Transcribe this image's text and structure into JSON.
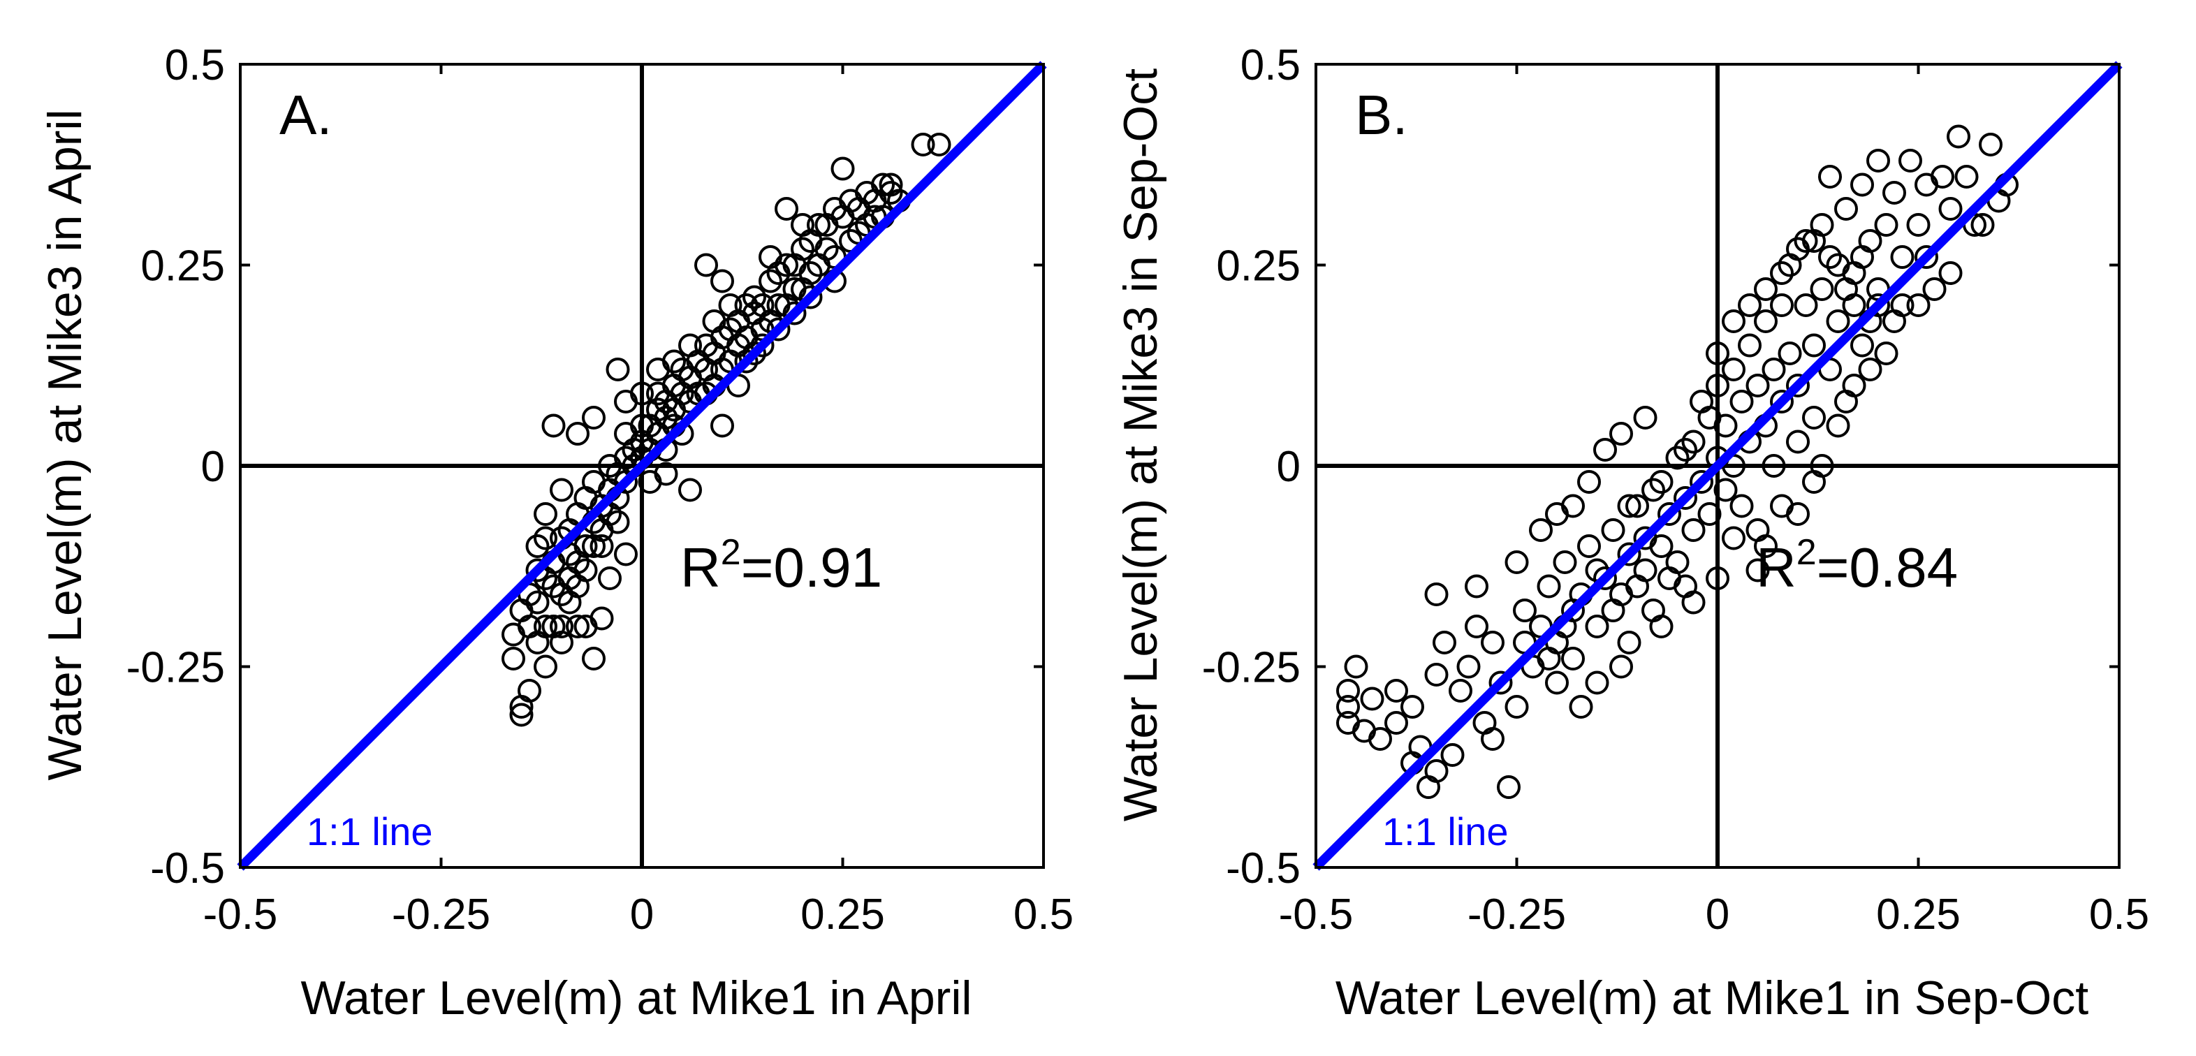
{
  "chart_data": [
    {
      "type": "scatter",
      "panel_label": "A.",
      "xlabel": "Water Level(m) at Mike1 in April",
      "ylabel": "Water Level(m) at Mike3 in April",
      "xlim": [
        -0.5,
        0.5
      ],
      "ylim": [
        -0.5,
        0.5
      ],
      "xticks": [
        -0.5,
        -0.25,
        0,
        0.25,
        0.5
      ],
      "yticks": [
        -0.5,
        -0.25,
        0,
        0.25,
        0.5
      ],
      "xtick_labels": [
        "-0.5",
        "-0.25",
        "0",
        "0.25",
        "0.5"
      ],
      "ytick_labels": [
        "-0.5",
        "-0.25",
        "0",
        "0.25",
        "0.5"
      ],
      "r2_prefix": "R",
      "r2_sup": "2",
      "r2_value": "=0.91",
      "one_to_one_label": "1:1 line",
      "one_to_one_color": "#0000ff",
      "marker_color": "#000000",
      "points": [
        [
          -0.15,
          -0.3
        ],
        [
          -0.15,
          -0.31
        ],
        [
          -0.14,
          -0.28
        ],
        [
          -0.16,
          -0.24
        ],
        [
          -0.13,
          -0.22
        ],
        [
          -0.12,
          -0.25
        ],
        [
          -0.12,
          -0.2
        ],
        [
          -0.11,
          -0.2
        ],
        [
          -0.1,
          -0.2
        ],
        [
          -0.1,
          -0.16
        ],
        [
          -0.09,
          -0.17
        ],
        [
          -0.09,
          -0.14
        ],
        [
          -0.08,
          -0.15
        ],
        [
          -0.08,
          -0.12
        ],
        [
          -0.07,
          -0.13
        ],
        [
          -0.07,
          -0.1
        ],
        [
          -0.06,
          -0.1
        ],
        [
          -0.06,
          -0.07
        ],
        [
          -0.05,
          -0.08
        ],
        [
          -0.05,
          -0.05
        ],
        [
          -0.04,
          -0.06
        ],
        [
          -0.04,
          -0.03
        ],
        [
          -0.03,
          -0.04
        ],
        [
          -0.03,
          -0.01
        ],
        [
          -0.02,
          -0.02
        ],
        [
          -0.02,
          0.01
        ],
        [
          -0.01,
          0
        ],
        [
          -0.01,
          0.02
        ],
        [
          0,
          0.01
        ],
        [
          0,
          0.03
        ],
        [
          0.01,
          0.02
        ],
        [
          0.01,
          0.05
        ],
        [
          0.02,
          0.04
        ],
        [
          0.02,
          0.07
        ],
        [
          0.03,
          0.06
        ],
        [
          0.03,
          0.08
        ],
        [
          0.04,
          0.07
        ],
        [
          0.04,
          0.1
        ],
        [
          0.05,
          0.09
        ],
        [
          0.05,
          0.12
        ],
        [
          0.06,
          0.11
        ],
        [
          0.07,
          0.13
        ],
        [
          0.08,
          0.12
        ],
        [
          0.08,
          0.15
        ],
        [
          0.09,
          0.14
        ],
        [
          0.1,
          0.16
        ],
        [
          0.11,
          0.17
        ],
        [
          0.12,
          0.18
        ],
        [
          0.13,
          0.2
        ],
        [
          0.14,
          0.21
        ],
        [
          0.15,
          0.2
        ],
        [
          0.16,
          0.23
        ],
        [
          0.17,
          0.24
        ],
        [
          0.18,
          0.25
        ],
        [
          0.19,
          0.25
        ],
        [
          0.2,
          0.27
        ],
        [
          0.21,
          0.28
        ],
        [
          0.22,
          0.3
        ],
        [
          0.23,
          0.3
        ],
        [
          0.24,
          0.32
        ],
        [
          0.25,
          0.31
        ],
        [
          0.26,
          0.33
        ],
        [
          0.27,
          0.32
        ],
        [
          0.28,
          0.34
        ],
        [
          0.29,
          0.33
        ],
        [
          0.3,
          0.35
        ],
        [
          0.31,
          0.35
        ],
        [
          0.35,
          0.4
        ],
        [
          0.37,
          0.4
        ],
        [
          0.25,
          0.37
        ],
        [
          0.2,
          0.3
        ],
        [
          0.18,
          0.32
        ],
        [
          0.16,
          0.26
        ],
        [
          0.08,
          0.25
        ],
        [
          0.1,
          0.23
        ],
        [
          -0.11,
          0.05
        ],
        [
          -0.08,
          0.04
        ],
        [
          -0.03,
          0.12
        ],
        [
          -0.06,
          0.06
        ],
        [
          -0.02,
          0.08
        ],
        [
          0.06,
          -0.03
        ],
        [
          0.03,
          -0.01
        ],
        [
          0.1,
          0.05
        ],
        [
          0.12,
          0.1
        ],
        [
          0.15,
          0.15
        ],
        [
          -0.04,
          -0.14
        ],
        [
          -0.07,
          -0.2
        ],
        [
          -0.06,
          -0.24
        ],
        [
          -0.05,
          -0.19
        ],
        [
          -0.02,
          -0.11
        ],
        [
          -0.13,
          -0.1
        ],
        [
          -0.12,
          -0.06
        ],
        [
          -0.1,
          -0.03
        ],
        [
          -0.14,
          -0.16
        ],
        [
          -0.11,
          -0.12
        ],
        [
          -0.09,
          -0.08
        ],
        [
          -0.07,
          -0.04
        ],
        [
          0,
          0.09
        ],
        [
          0.02,
          0.12
        ],
        [
          0.04,
          0.13
        ],
        [
          0.06,
          0.15
        ],
        [
          0.09,
          0.18
        ],
        [
          0.11,
          0.2
        ],
        [
          0.13,
          0.16
        ],
        [
          0.14,
          0.19
        ],
        [
          0.17,
          0.2
        ],
        [
          0.19,
          0.22
        ],
        [
          0.22,
          0.25
        ],
        [
          0.24,
          0.26
        ],
        [
          0.26,
          0.28
        ],
        [
          0.28,
          0.3
        ],
        [
          0.3,
          0.31
        ],
        [
          0.32,
          0.33
        ],
        [
          -0.1,
          -0.22
        ],
        [
          -0.08,
          -0.2
        ],
        [
          -0.09,
          -0.11
        ],
        [
          -0.11,
          -0.15
        ],
        [
          -0.12,
          -0.14
        ],
        [
          -0.13,
          -0.17
        ],
        [
          -0.1,
          -0.09
        ],
        [
          -0.05,
          -0.1
        ],
        [
          -0.03,
          -0.07
        ],
        [
          0.01,
          -0.02
        ],
        [
          0.03,
          0.02
        ],
        [
          0.05,
          0.04
        ],
        [
          0.07,
          0.09
        ],
        [
          0.09,
          0.1
        ],
        [
          0.11,
          0.13
        ],
        [
          0.12,
          0.15
        ],
        [
          0.14,
          0.14
        ],
        [
          0.16,
          0.18
        ],
        [
          0.18,
          0.2
        ],
        [
          0.2,
          0.22
        ],
        [
          0.21,
          0.24
        ],
        [
          0.23,
          0.27
        ],
        [
          0.27,
          0.29
        ],
        [
          0.29,
          0.31
        ],
        [
          0.31,
          0.34
        ],
        [
          -0.14,
          -0.2
        ],
        [
          -0.16,
          -0.21
        ],
        [
          -0.15,
          -0.18
        ],
        [
          -0.13,
          -0.13
        ],
        [
          -0.12,
          -0.09
        ],
        [
          -0.08,
          -0.06
        ],
        [
          -0.06,
          -0.02
        ],
        [
          -0.04,
          0
        ],
        [
          -0.02,
          0.04
        ],
        [
          0,
          0.05
        ],
        [
          0.02,
          0.09
        ],
        [
          0.04,
          0.05
        ],
        [
          0.06,
          0.08
        ],
        [
          0.08,
          0.09
        ],
        [
          0.1,
          0.12
        ],
        [
          0.13,
          0.13
        ],
        [
          0.15,
          0.17
        ],
        [
          0.17,
          0.17
        ],
        [
          0.19,
          0.19
        ],
        [
          0.21,
          0.21
        ],
        [
          0.24,
          0.23
        ]
      ]
    },
    {
      "type": "scatter",
      "panel_label": "B.",
      "xlabel": "Water Level(m) at Mike1 in Sep-Oct",
      "ylabel": "Water Level(m) at Mike3 in Sep-Oct",
      "xlim": [
        -0.5,
        0.5
      ],
      "ylim": [
        -0.5,
        0.5
      ],
      "xticks": [
        -0.5,
        -0.25,
        0,
        0.25,
        0.5
      ],
      "yticks": [
        -0.5,
        -0.25,
        0,
        0.25,
        0.5
      ],
      "xtick_labels": [
        "-0.5",
        "-0.25",
        "0",
        "0.25",
        "0.5"
      ],
      "ytick_labels": [
        "-0.5",
        "-0.25",
        "0",
        "0.25",
        "0.5"
      ],
      "r2_prefix": "R",
      "r2_sup": "2",
      "r2_value": "=0.84",
      "one_to_one_label": "1:1 line",
      "one_to_one_color": "#0000ff",
      "marker_color": "#000000",
      "points": [
        [
          -0.46,
          -0.28
        ],
        [
          -0.46,
          -0.3
        ],
        [
          -0.46,
          -0.32
        ],
        [
          -0.45,
          -0.25
        ],
        [
          -0.44,
          -0.33
        ],
        [
          -0.43,
          -0.29
        ],
        [
          -0.42,
          -0.34
        ],
        [
          -0.4,
          -0.32
        ],
        [
          -0.4,
          -0.28
        ],
        [
          -0.38,
          -0.3
        ],
        [
          -0.37,
          -0.35
        ],
        [
          -0.36,
          -0.4
        ],
        [
          -0.35,
          -0.38
        ],
        [
          -0.35,
          -0.26
        ],
        [
          -0.34,
          -0.22
        ],
        [
          -0.32,
          -0.28
        ],
        [
          -0.31,
          -0.25
        ],
        [
          -0.3,
          -0.2
        ],
        [
          -0.29,
          -0.32
        ],
        [
          -0.28,
          -0.22
        ],
        [
          -0.27,
          -0.27
        ],
        [
          -0.26,
          -0.4
        ],
        [
          -0.25,
          -0.3
        ],
        [
          -0.24,
          -0.18
        ],
        [
          -0.23,
          -0.25
        ],
        [
          -0.22,
          -0.2
        ],
        [
          -0.21,
          -0.15
        ],
        [
          -0.2,
          -0.22
        ],
        [
          -0.2,
          -0.27
        ],
        [
          -0.19,
          -0.12
        ],
        [
          -0.18,
          -0.18
        ],
        [
          -0.17,
          -0.3
        ],
        [
          -0.16,
          -0.1
        ],
        [
          -0.15,
          -0.2
        ],
        [
          -0.14,
          -0.14
        ],
        [
          -0.13,
          -0.08
        ],
        [
          -0.12,
          -0.16
        ],
        [
          -0.12,
          -0.25
        ],
        [
          -0.11,
          -0.11
        ],
        [
          -0.1,
          -0.05
        ],
        [
          -0.1,
          -0.15
        ],
        [
          -0.09,
          -0.09
        ],
        [
          -0.08,
          -0.03
        ],
        [
          -0.08,
          -0.18
        ],
        [
          -0.07,
          -0.1
        ],
        [
          -0.06,
          -0.06
        ],
        [
          -0.05,
          0.01
        ],
        [
          -0.05,
          -0.12
        ],
        [
          -0.04,
          -0.04
        ],
        [
          -0.03,
          0.03
        ],
        [
          -0.03,
          -0.08
        ],
        [
          -0.02,
          -0.02
        ],
        [
          -0.01,
          0.06
        ],
        [
          -0.01,
          -0.06
        ],
        [
          0,
          0.01
        ],
        [
          0,
          0.1
        ],
        [
          0.01,
          -0.03
        ],
        [
          0.01,
          0.05
        ],
        [
          0.02,
          0.12
        ],
        [
          0.02,
          0
        ],
        [
          0.03,
          0.08
        ],
        [
          0.03,
          -0.05
        ],
        [
          0.04,
          0.15
        ],
        [
          0.04,
          0.03
        ],
        [
          0.05,
          0.1
        ],
        [
          0.05,
          -0.08
        ],
        [
          0.06,
          0.18
        ],
        [
          0.06,
          0.05
        ],
        [
          0.07,
          0.12
        ],
        [
          0.07,
          0
        ],
        [
          0.08,
          0.2
        ],
        [
          0.08,
          0.08
        ],
        [
          0.09,
          0.14
        ],
        [
          0.09,
          0.25
        ],
        [
          0.1,
          0.1
        ],
        [
          0.1,
          0.03
        ],
        [
          0.11,
          0.2
        ],
        [
          0.11,
          0.28
        ],
        [
          0.12,
          0.15
        ],
        [
          0.12,
          0.06
        ],
        [
          0.13,
          0.22
        ],
        [
          0.13,
          0.3
        ],
        [
          0.14,
          0.12
        ],
        [
          0.15,
          0.25
        ],
        [
          0.15,
          0.18
        ],
        [
          0.16,
          0.32
        ],
        [
          0.16,
          0.08
        ],
        [
          0.17,
          0.2
        ],
        [
          0.18,
          0.35
        ],
        [
          0.18,
          0.15
        ],
        [
          0.19,
          0.28
        ],
        [
          0.2,
          0.22
        ],
        [
          0.2,
          0.38
        ],
        [
          0.21,
          0.3
        ],
        [
          0.22,
          0.18
        ],
        [
          0.22,
          0.34
        ],
        [
          0.23,
          0.26
        ],
        [
          0.24,
          0.38
        ],
        [
          0.25,
          0.2
        ],
        [
          0.25,
          0.3
        ],
        [
          0.26,
          0.35
        ],
        [
          0.27,
          0.22
        ],
        [
          0.28,
          0.36
        ],
        [
          0.29,
          0.32
        ],
        [
          0.3,
          0.41
        ],
        [
          0.31,
          0.36
        ],
        [
          0.32,
          0.3
        ],
        [
          0.34,
          0.4
        ],
        [
          0.35,
          0.33
        ],
        [
          0.36,
          0.35
        ],
        [
          0.14,
          0.36
        ],
        [
          0.17,
          0.24
        ],
        [
          0.19,
          0.18
        ],
        [
          -0.14,
          0.02
        ],
        [
          -0.12,
          0.04
        ],
        [
          -0.09,
          0.06
        ],
        [
          -0.2,
          -0.06
        ],
        [
          -0.16,
          -0.02
        ],
        [
          0.05,
          -0.13
        ],
        [
          0,
          -0.14
        ],
        [
          -0.03,
          -0.17
        ],
        [
          0.08,
          -0.05
        ],
        [
          0.12,
          -0.02
        ],
        [
          -0.35,
          -0.16
        ],
        [
          -0.3,
          -0.15
        ],
        [
          -0.25,
          -0.12
        ],
        [
          -0.22,
          -0.08
        ],
        [
          -0.18,
          -0.05
        ],
        [
          -0.28,
          -0.34
        ],
        [
          -0.33,
          -0.36
        ],
        [
          -0.38,
          -0.37
        ],
        [
          -0.18,
          -0.24
        ],
        [
          -0.15,
          -0.27
        ],
        [
          -0.11,
          -0.22
        ],
        [
          -0.07,
          -0.2
        ],
        [
          -0.04,
          -0.15
        ],
        [
          0.02,
          -0.09
        ],
        [
          0.06,
          -0.1
        ],
        [
          0.1,
          -0.06
        ],
        [
          0.13,
          0.0
        ],
        [
          0.15,
          0.05
        ],
        [
          0.17,
          0.1
        ],
        [
          0.19,
          0.12
        ],
        [
          0.21,
          0.14
        ],
        [
          -0.24,
          -0.22
        ],
        [
          -0.21,
          -0.24
        ],
        [
          -0.19,
          -0.2
        ],
        [
          -0.17,
          -0.16
        ],
        [
          -0.15,
          -0.13
        ],
        [
          -0.13,
          -0.18
        ],
        [
          -0.11,
          -0.05
        ],
        [
          -0.09,
          -0.13
        ],
        [
          -0.07,
          -0.02
        ],
        [
          -0.06,
          -0.14
        ],
        [
          -0.04,
          0.02
        ],
        [
          -0.02,
          0.08
        ],
        [
          0,
          0.14
        ],
        [
          0.02,
          0.18
        ],
        [
          0.04,
          0.2
        ],
        [
          0.06,
          0.22
        ],
        [
          0.08,
          0.24
        ],
        [
          0.1,
          0.27
        ],
        [
          0.12,
          0.28
        ],
        [
          0.14,
          0.26
        ],
        [
          0.16,
          0.22
        ],
        [
          0.18,
          0.26
        ],
        [
          0.2,
          0.2
        ],
        [
          0.23,
          0.2
        ],
        [
          0.26,
          0.26
        ],
        [
          0.29,
          0.24
        ],
        [
          0.33,
          0.3
        ]
      ]
    }
  ]
}
